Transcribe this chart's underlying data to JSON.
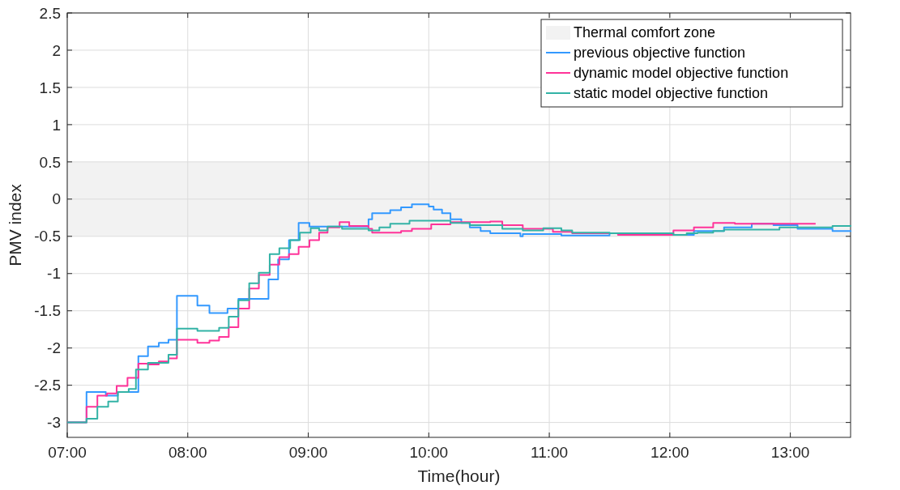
{
  "chart_data": {
    "type": "step",
    "xlabel": "Time(hour)",
    "ylabel": "PMV index",
    "xlim": [
      7,
      13.5
    ],
    "xticks": [
      {
        "value": 7,
        "label": "07:00"
      },
      {
        "value": 8,
        "label": "08:00"
      },
      {
        "value": 9,
        "label": "09:00"
      },
      {
        "value": 10,
        "label": "10:00"
      },
      {
        "value": 11,
        "label": "11:00"
      },
      {
        "value": 12,
        "label": "12:00"
      },
      {
        "value": 13,
        "label": "13:00"
      }
    ],
    "ylim": [
      -3.2,
      2.5
    ],
    "yticks": [
      -3,
      -2.5,
      -2,
      -1.5,
      -1,
      -0.5,
      0,
      0.5,
      1,
      1.5,
      2,
      2.5
    ],
    "grid": true,
    "legend": "top right",
    "bands": [
      {
        "axis": "y",
        "from": -0.5,
        "to": 0.5,
        "label": "Thermal comfort zone",
        "color": "#f2f2f2"
      }
    ],
    "series": [
      {
        "name": "previous objective function",
        "color": "#3399ff",
        "x": [
          7,
          7.16,
          7.32,
          7.42,
          7.59,
          7.67,
          7.76,
          7.84,
          7.91,
          8.08,
          8.18,
          8.33,
          8.42,
          8.67,
          8.75,
          8.84,
          8.92,
          9.01,
          9.5,
          9.53,
          9.68,
          9.77,
          9.86,
          10.0,
          10.04,
          10.11,
          10.18,
          10.27,
          10.34,
          10.43,
          10.51,
          10.76,
          10.78,
          11.1,
          11.5,
          12.0,
          12.2,
          12.45,
          12.68,
          12.86,
          13.06,
          13.35,
          13.5
        ],
        "values": [
          -3,
          -2.59,
          -2.64,
          -2.59,
          -2.11,
          -1.98,
          -1.93,
          -1.89,
          -1.3,
          -1.43,
          -1.53,
          -1.47,
          -1.34,
          -1.08,
          -0.81,
          -0.55,
          -0.32,
          -0.37,
          -0.27,
          -0.19,
          -0.15,
          -0.11,
          -0.07,
          -0.1,
          -0.14,
          -0.19,
          -0.27,
          -0.32,
          -0.38,
          -0.43,
          -0.46,
          -0.5,
          -0.47,
          -0.49,
          -0.46,
          -0.48,
          -0.43,
          -0.38,
          -0.33,
          -0.35,
          -0.4,
          -0.43,
          -0.44
        ]
      },
      {
        "name": "dynamic model objective function",
        "color": "#ff3399",
        "x": [
          7,
          7.16,
          7.25,
          7.33,
          7.41,
          7.5,
          7.59,
          7.67,
          7.76,
          7.84,
          7.91,
          8.08,
          8.18,
          8.26,
          8.34,
          8.42,
          8.51,
          8.59,
          8.68,
          8.76,
          8.84,
          8.92,
          9.01,
          9.09,
          9.16,
          9.26,
          9.34,
          9.5,
          9.53,
          9.77,
          9.86,
          10.02,
          10.18,
          10.51,
          10.61,
          10.78,
          11.03,
          11.19,
          11.57,
          12.03,
          12.2,
          12.36,
          12.54,
          12.95,
          13.21
        ],
        "values": [
          -3,
          -2.79,
          -2.64,
          -2.61,
          -2.51,
          -2.4,
          -2.21,
          -2.22,
          -2.18,
          -2.14,
          -1.89,
          -1.93,
          -1.9,
          -1.85,
          -1.72,
          -1.47,
          -1.2,
          -1.02,
          -0.88,
          -0.78,
          -0.74,
          -0.64,
          -0.55,
          -0.45,
          -0.38,
          -0.31,
          -0.36,
          -0.4,
          -0.45,
          -0.43,
          -0.4,
          -0.34,
          -0.31,
          -0.3,
          -0.35,
          -0.4,
          -0.44,
          -0.46,
          -0.48,
          -0.42,
          -0.38,
          -0.32,
          -0.33,
          -0.33,
          -0.33
        ]
      },
      {
        "name": "static model objective function",
        "color": "#33b3a6",
        "x": [
          7,
          7.16,
          7.25,
          7.34,
          7.42,
          7.51,
          7.57,
          7.67,
          7.84,
          7.91,
          8.08,
          8.26,
          8.34,
          8.42,
          8.51,
          8.59,
          8.68,
          8.76,
          8.85,
          8.93,
          9.02,
          9.09,
          9.16,
          9.28,
          9.5,
          9.59,
          9.68,
          9.84,
          10.18,
          10.34,
          10.51,
          10.61,
          10.78,
          10.95,
          11.1,
          11.19,
          11.5,
          12.03,
          12.14,
          12.23,
          12.36,
          12.45,
          12.91,
          13.35,
          13.5
        ],
        "values": [
          -3,
          -2.95,
          -2.79,
          -2.72,
          -2.59,
          -2.55,
          -2.29,
          -2.2,
          -2.09,
          -1.74,
          -1.77,
          -1.73,
          -1.58,
          -1.36,
          -1.13,
          -0.99,
          -0.74,
          -0.66,
          -0.55,
          -0.45,
          -0.39,
          -0.42,
          -0.37,
          -0.4,
          -0.42,
          -0.38,
          -0.33,
          -0.29,
          -0.32,
          -0.35,
          -0.35,
          -0.4,
          -0.42,
          -0.39,
          -0.42,
          -0.45,
          -0.46,
          -0.48,
          -0.46,
          -0.45,
          -0.43,
          -0.41,
          -0.38,
          -0.36,
          -0.35
        ]
      }
    ]
  }
}
